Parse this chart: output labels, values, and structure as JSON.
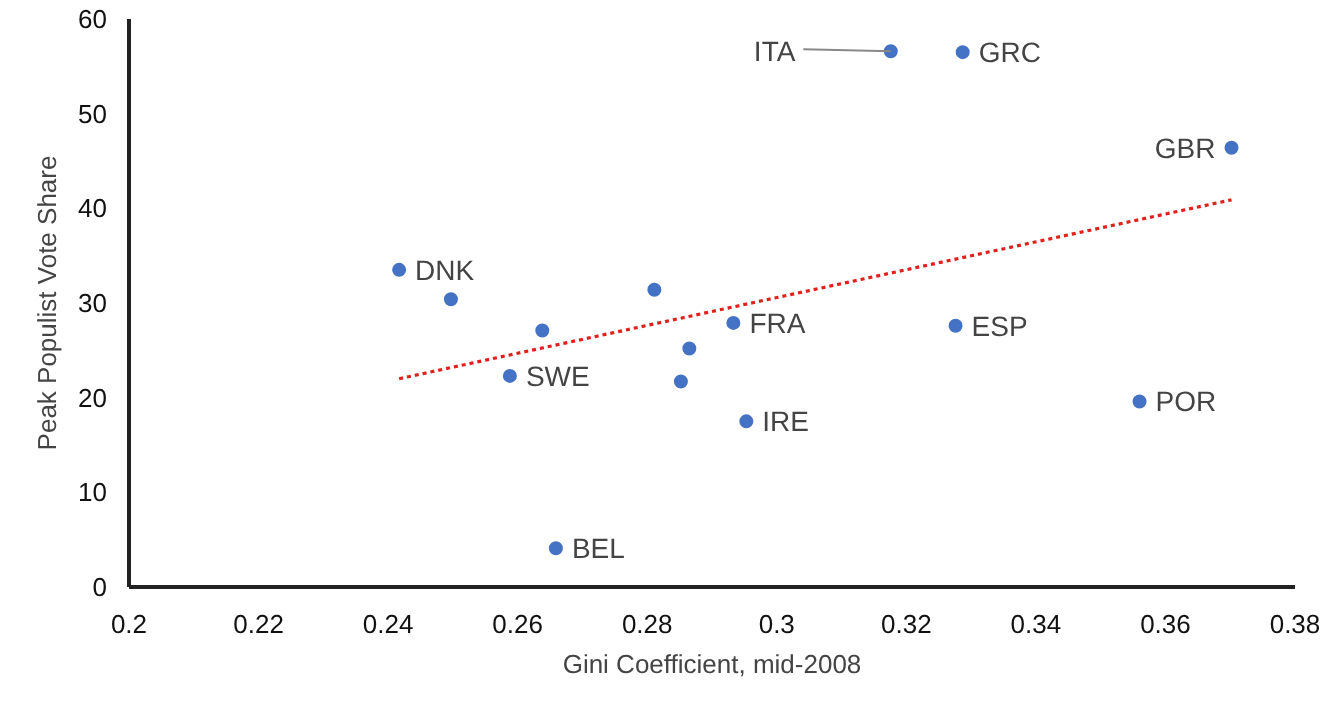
{
  "chart_data": {
    "type": "scatter",
    "xlabel": "Gini Coefficient, mid-2008",
    "ylabel": "Peak Populist Vote Share",
    "xlim": [
      0.2,
      0.38
    ],
    "xticks": [
      0.2,
      0.22,
      0.24,
      0.26,
      0.28,
      0.3,
      0.32,
      0.34,
      0.36,
      0.38
    ],
    "ylim": [
      0,
      60
    ],
    "yticks": [
      0,
      10,
      20,
      30,
      40,
      50,
      60
    ],
    "grid": false,
    "series": [
      {
        "marker": "circle",
        "color": "#4472c4",
        "x": [
          0.2417,
          0.2497,
          0.2638,
          0.2588,
          0.2811,
          0.2659,
          0.2852,
          0.2865,
          0.2933,
          0.2953,
          0.3176,
          0.3287,
          0.3276,
          0.356,
          0.3702
        ],
        "values": [
          33.5,
          30.4,
          27.1,
          22.3,
          31.4,
          4.1,
          21.7,
          25.2,
          27.9,
          17.5,
          56.6,
          56.5,
          27.6,
          19.6,
          46.4
        ]
      },
      {
        "type": "line",
        "color": "#e0201b",
        "line_style": "dotted",
        "x": [
          0.2417,
          0.3702
        ],
        "values": [
          22.0,
          40.9
        ]
      }
    ],
    "annotations": [
      {
        "text": "DNK",
        "x": 0.2417,
        "y": 33.5
      },
      {
        "text": "SWE",
        "x": 0.2588,
        "y": 22.3
      },
      {
        "text": "BEL",
        "x": 0.2659,
        "y": 4.1
      },
      {
        "text": "FRA",
        "x": 0.2933,
        "y": 27.9
      },
      {
        "text": "IRE",
        "x": 0.2953,
        "y": 17.5
      },
      {
        "text": "ITA",
        "x": 0.3176,
        "y": 56.6
      },
      {
        "text": "GRC",
        "x": 0.3287,
        "y": 56.5
      },
      {
        "text": "ESP",
        "x": 0.3276,
        "y": 27.6
      },
      {
        "text": "POR",
        "x": 0.356,
        "y": 19.6
      },
      {
        "text": "GBR",
        "x": 0.3702,
        "y": 46.4
      }
    ]
  }
}
